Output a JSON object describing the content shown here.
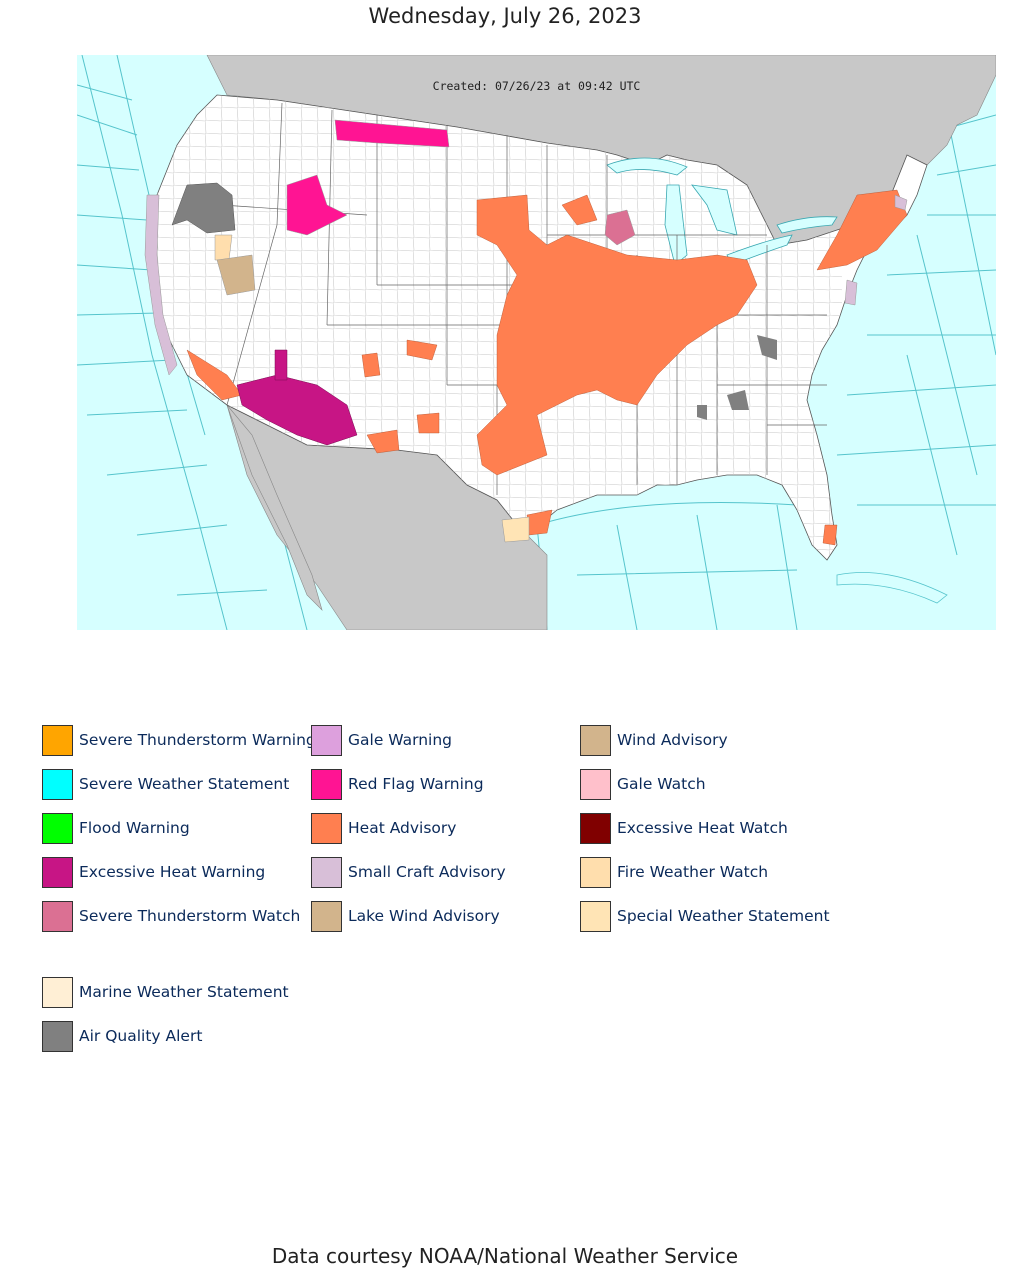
{
  "page": {
    "title": "Wednesday, July 26, 2023",
    "footer": "Data courtesy NOAA/National Weather Service"
  },
  "map": {
    "created_stamp": "Created: 07/26/23 at 09:42 UTC",
    "colors": {
      "ocean": "#d6ffff",
      "foreign_land": "#c8c8c8",
      "us_land": "#ffffff",
      "county_lines": "#bbbbbb",
      "marine_zone_lines": "#55c4cc"
    }
  },
  "legend": {
    "items": [
      {
        "label": "Severe Thunderstorm Warning",
        "color": "#ffa500"
      },
      {
        "label": "Severe Weather Statement",
        "color": "#00ffff"
      },
      {
        "label": "Flood Warning",
        "color": "#00ff00"
      },
      {
        "label": "Excessive Heat Warning",
        "color": "#c71585"
      },
      {
        "label": "Severe Thunderstorm Watch",
        "color": "#db7093"
      },
      {
        "label": "Gale Warning",
        "color": "#dda0dd"
      },
      {
        "label": "Red Flag Warning",
        "color": "#ff1493"
      },
      {
        "label": "Heat Advisory",
        "color": "#ff7f50"
      },
      {
        "label": "Small Craft Advisory",
        "color": "#d8bfd8"
      },
      {
        "label": "Lake Wind Advisory",
        "color": "#d2b48c"
      },
      {
        "label": "Wind Advisory",
        "color": "#d2b48c"
      },
      {
        "label": "Gale Watch",
        "color": "#ffc0cb"
      },
      {
        "label": "Excessive Heat Watch",
        "color": "#800000"
      },
      {
        "label": "Fire Weather Watch",
        "color": "#ffdead"
      },
      {
        "label": "Special Weather Statement",
        "color": "#ffe4b5"
      },
      {
        "label": "Marine Weather Statement",
        "color": "#ffefd5"
      },
      {
        "label": "Air Quality Alert",
        "color": "#808080"
      }
    ]
  }
}
